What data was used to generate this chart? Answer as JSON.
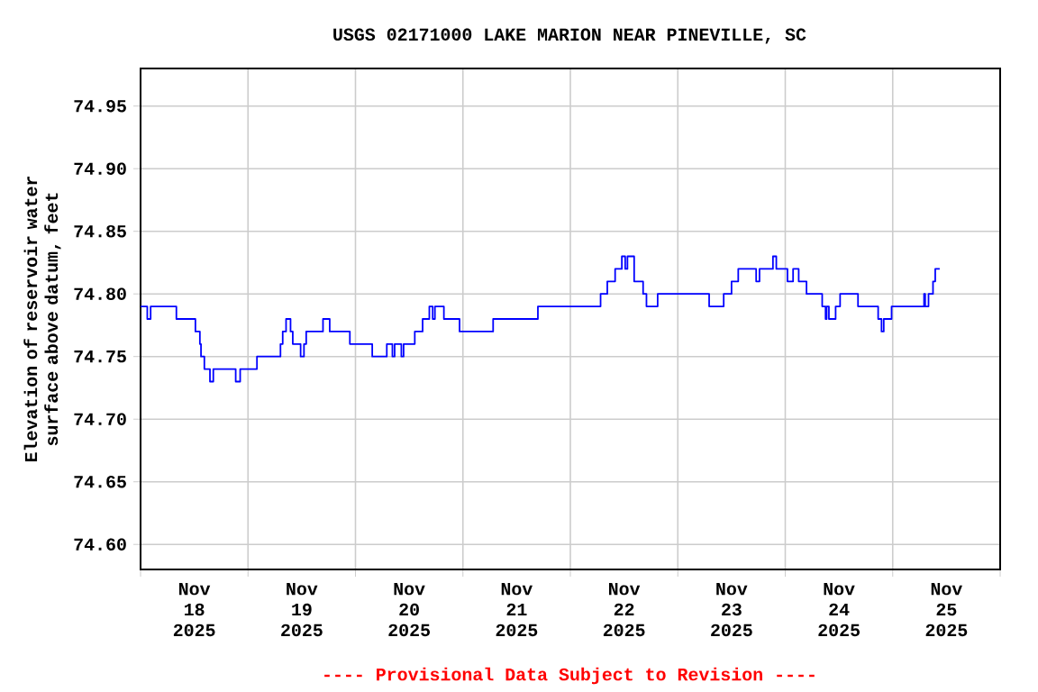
{
  "chart_data": {
    "type": "step",
    "title": "USGS 02171000 LAKE MARION NEAR PINEVILLE, SC",
    "ylabel": "Elevation of reservoir water surface above datum, feet",
    "annotations": [
      "---- Provisional Data Subject to Revision ----"
    ],
    "grid": true,
    "xlim": [
      "2025-11-18T00:00",
      "2025-11-26T00:00"
    ],
    "ylim": [
      74.58,
      74.98
    ],
    "xticks": [
      {
        "value": "2025-11-18T00:00",
        "label": null
      },
      {
        "value": "2025-11-19T00:00",
        "label": null
      },
      {
        "value": "2025-11-20T00:00",
        "label": null
      },
      {
        "value": "2025-11-21T00:00",
        "label": null
      },
      {
        "value": "2025-11-22T00:00",
        "label": null
      },
      {
        "value": "2025-11-23T00:00",
        "label": null
      },
      {
        "value": "2025-11-24T00:00",
        "label": null
      },
      {
        "value": "2025-11-25T00:00",
        "label": null
      },
      {
        "value": "2025-11-26T00:00",
        "label": null
      },
      {
        "value": "2025-11-18T12:00",
        "label": "Nov 18 2025"
      },
      {
        "value": "2025-11-19T12:00",
        "label": "Nov 19 2025"
      },
      {
        "value": "2025-11-20T12:00",
        "label": "Nov 20 2025"
      },
      {
        "value": "2025-11-21T12:00",
        "label": "Nov 21 2025"
      },
      {
        "value": "2025-11-22T12:00",
        "label": "Nov 22 2025"
      },
      {
        "value": "2025-11-23T12:00",
        "label": "Nov 23 2025"
      },
      {
        "value": "2025-11-24T12:00",
        "label": "Nov 24 2025"
      },
      {
        "value": "2025-11-25T12:00",
        "label": "Nov 25 2025"
      }
    ],
    "yticks": [
      {
        "value": 74.6,
        "label": "74.60"
      },
      74.65,
      {
        "value": 74.7,
        "label": "74.70"
      },
      74.75,
      {
        "value": 74.8,
        "label": "74.80"
      },
      74.85,
      {
        "value": 74.9,
        "label": "74.90"
      },
      74.95
    ],
    "x": [
      "2025-11-18T00:00",
      "2025-11-18T01:30",
      "2025-11-18T02:15",
      "2025-11-18T08:00",
      "2025-11-18T12:15",
      "2025-11-18T13:15",
      "2025-11-18T13:30",
      "2025-11-18T14:15",
      "2025-11-18T15:30",
      "2025-11-18T16:15",
      "2025-11-18T21:15",
      "2025-11-18T22:15",
      "2025-11-19T02:00",
      "2025-11-19T07:15",
      "2025-11-19T07:45",
      "2025-11-19T08:30",
      "2025-11-19T09:30",
      "2025-11-19T10:00",
      "2025-11-19T11:45",
      "2025-11-19T12:30",
      "2025-11-19T13:00",
      "2025-11-19T16:45",
      "2025-11-19T18:15",
      "2025-11-19T22:45",
      "2025-11-20T03:45",
      "2025-11-20T07:00",
      "2025-11-20T08:15",
      "2025-11-20T08:45",
      "2025-11-20T10:15",
      "2025-11-20T10:45",
      "2025-11-20T13:15",
      "2025-11-20T15:00",
      "2025-11-20T16:30",
      "2025-11-20T17:15",
      "2025-11-20T17:45",
      "2025-11-20T19:45",
      "2025-11-20T23:15",
      "2025-11-21T06:45",
      "2025-11-21T16:45",
      "2025-11-22T06:45",
      "2025-11-22T08:15",
      "2025-11-22T10:00",
      "2025-11-22T11:30",
      "2025-11-22T12:15",
      "2025-11-22T12:45",
      "2025-11-22T14:15",
      "2025-11-22T16:15",
      "2025-11-22T17:00",
      "2025-11-22T19:30",
      "2025-11-23T07:00",
      "2025-11-23T10:15",
      "2025-11-23T12:00",
      "2025-11-23T13:30",
      "2025-11-23T17:30",
      "2025-11-23T18:15",
      "2025-11-23T21:15",
      "2025-11-23T22:00",
      "2025-11-24T00:30",
      "2025-11-24T01:45",
      "2025-11-24T03:00",
      "2025-11-24T04:45",
      "2025-11-24T08:15",
      "2025-11-24T09:00",
      "2025-11-24T09:15",
      "2025-11-24T09:45",
      "2025-11-24T11:15",
      "2025-11-24T12:15",
      "2025-11-24T16:15",
      "2025-11-24T20:45",
      "2025-11-24T21:30",
      "2025-11-24T22:00",
      "2025-11-24T23:45",
      "2025-11-25T07:00",
      "2025-11-25T07:15",
      "2025-11-25T08:00",
      "2025-11-25T09:00",
      "2025-11-25T09:30",
      "2025-11-25T10:30"
    ],
    "series": [
      {
        "color": "#0000ff",
        "values": [
          74.79,
          74.78,
          74.79,
          74.78,
          74.77,
          74.76,
          74.75,
          74.74,
          74.73,
          74.74,
          74.73,
          74.74,
          74.75,
          74.76,
          74.77,
          74.78,
          74.77,
          74.76,
          74.75,
          74.76,
          74.77,
          74.78,
          74.77,
          74.76,
          74.75,
          74.76,
          74.75,
          74.76,
          74.75,
          74.76,
          74.77,
          74.78,
          74.79,
          74.78,
          74.79,
          74.78,
          74.77,
          74.78,
          74.79,
          74.8,
          74.81,
          74.82,
          74.83,
          74.82,
          74.83,
          74.81,
          74.8,
          74.79,
          74.8,
          74.79,
          74.8,
          74.81,
          74.82,
          74.81,
          74.82,
          74.83,
          74.82,
          74.81,
          74.82,
          74.81,
          74.8,
          74.79,
          74.78,
          74.79,
          74.78,
          74.79,
          74.8,
          74.79,
          74.78,
          74.77,
          74.78,
          74.79,
          74.8,
          74.79,
          74.8,
          74.81,
          74.82,
          74.82
        ]
      }
    ]
  }
}
